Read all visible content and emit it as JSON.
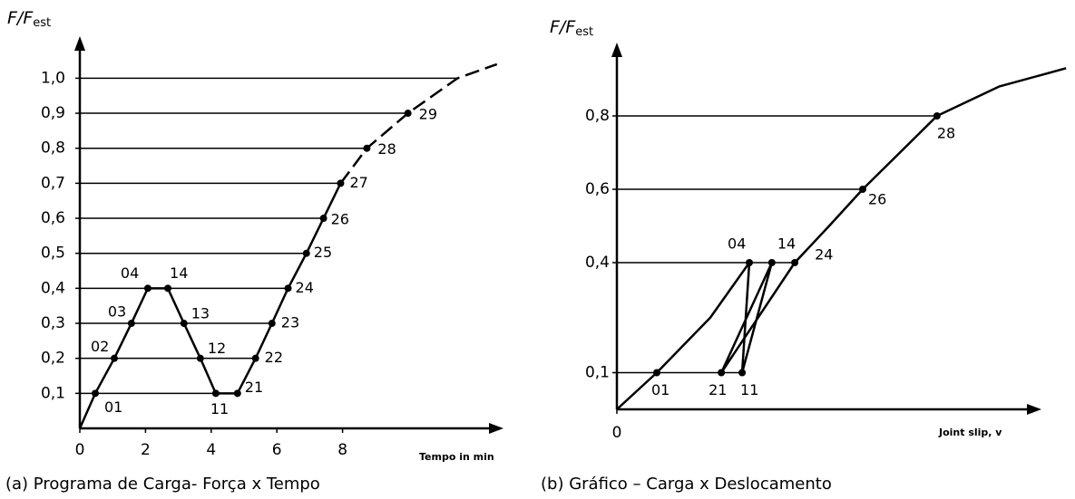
{
  "chart_data": [
    {
      "type": "line",
      "caption": "(a) Programa de Carga- Força x Tempo",
      "ylabel": "F/F",
      "ylabel_sub": "est",
      "xlabel": "Tempo in min",
      "xlim": [
        0,
        12.9
      ],
      "ylim": [
        0,
        1.12
      ],
      "xticks": [
        0,
        2,
        4,
        6,
        8
      ],
      "yticks": [
        {
          "value": 0.1,
          "label": "0,1"
        },
        {
          "value": 0.2,
          "label": "0,2"
        },
        {
          "value": 0.3,
          "label": "0,3"
        },
        {
          "value": 0.4,
          "label": "0,4"
        },
        {
          "value": 0.5,
          "label": "0,5"
        },
        {
          "value": 0.6,
          "label": "0,6"
        },
        {
          "value": 0.7,
          "label": "0,7"
        },
        {
          "value": 0.8,
          "label": "0,8"
        },
        {
          "value": 0.9,
          "label": "0,9"
        },
        {
          "value": 1.0,
          "label": "1,0"
        }
      ],
      "grid": true,
      "series": [
        {
          "color": "#000000",
          "dashed": false,
          "x": [
            0,
            0.47,
            1.05,
            1.57,
            2.07,
            2.68,
            3.17,
            3.67,
            4.14,
            4.8,
            5.35,
            5.85,
            6.34,
            6.9,
            7.42,
            7.94
          ],
          "values": [
            0,
            0.1,
            0.2,
            0.3,
            0.4,
            0.4,
            0.3,
            0.2,
            0.1,
            0.1,
            0.2,
            0.3,
            0.4,
            0.5,
            0.6,
            0.7
          ],
          "point_labels": [
            null,
            "01",
            "02",
            "03",
            "04",
            "14",
            "13",
            "12",
            "11",
            "21",
            "22",
            "23",
            "24",
            "25",
            "26",
            "27"
          ]
        },
        {
          "color": "#000000",
          "dashed": true,
          "x": [
            7.94,
            8.74,
            9.99,
            11.5,
            12.7
          ],
          "values": [
            0.7,
            0.8,
            0.9,
            1.0,
            1.04
          ],
          "point_labels": [
            null,
            "28",
            "29",
            null,
            null
          ]
        }
      ]
    },
    {
      "type": "line",
      "caption": "(b) Gráfico – Carga x Deslocamento",
      "ylabel": "F/F",
      "ylabel_sub": "est",
      "xlabel": "Joint slip, v",
      "xlim": [
        0,
        10
      ],
      "ylim": [
        0,
        1.0
      ],
      "xticks": [
        0
      ],
      "yticks": [
        {
          "value": 0.1,
          "label": "0,1"
        },
        {
          "value": 0.4,
          "label": "0,4"
        },
        {
          "value": 0.6,
          "label": "0,6"
        },
        {
          "value": 0.8,
          "label": "0,8"
        }
      ],
      "grid": true,
      "series": [
        {
          "color": "#000000",
          "dashed": false,
          "x": [
            0,
            0.94,
            2.2,
            3.12,
            2.95,
            3.65,
            2.46,
            4.19,
            5.0,
            5.79,
            7.54,
            9.0,
            10.58
          ],
          "values": [
            0,
            0.1,
            0.25,
            0.4,
            0.1,
            0.4,
            0.1,
            0.4,
            0.5,
            0.6,
            0.8,
            0.88,
            0.93
          ],
          "point_labels": [
            null,
            "01",
            null,
            "04",
            "11",
            "14",
            "21",
            "24",
            null,
            "26",
            "28",
            null,
            null
          ]
        }
      ]
    }
  ]
}
